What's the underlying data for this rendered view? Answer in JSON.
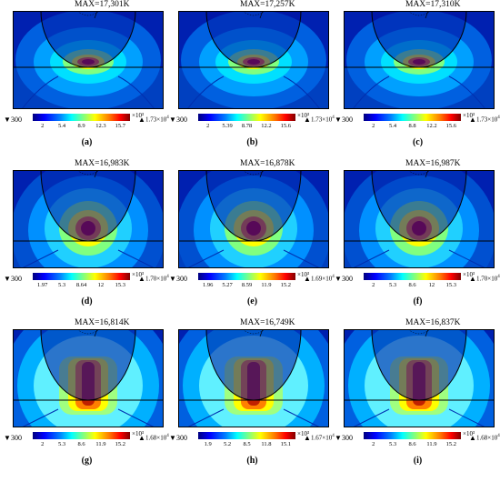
{
  "panels": [
    {
      "max": "MAX=17,301K",
      "min": "300",
      "maxv": "1.73×10",
      "ticks": [
        "2",
        "5.4",
        "8.9",
        "12.3",
        "15.7"
      ],
      "unit": "×10³",
      "caption": "(a)",
      "style": 1
    },
    {
      "max": "MAX=17,257K",
      "min": "300",
      "maxv": "1.73×10",
      "ticks": [
        "2",
        "5.39",
        "8.78",
        "12.2",
        "15.6"
      ],
      "unit": "×10³",
      "caption": "(b)",
      "style": 1
    },
    {
      "max": "MAX=17,310K",
      "min": "300",
      "maxv": "1.73×10",
      "ticks": [
        "2",
        "5.4",
        "8.8",
        "12.2",
        "15.6"
      ],
      "unit": "×10³",
      "caption": "(c)",
      "style": 1
    },
    {
      "max": "MAX=16,983K",
      "min": "300",
      "maxv": "1.70×10",
      "ticks": [
        "1.97",
        "5.3",
        "8.64",
        "12",
        "15.3"
      ],
      "unit": "×10³",
      "caption": "(d)",
      "style": 2
    },
    {
      "max": "MAX=16,878K",
      "min": "300",
      "maxv": "1.69×10",
      "ticks": [
        "1.96",
        "5.27",
        "8.59",
        "11.9",
        "15.2"
      ],
      "unit": "×10³",
      "caption": "(e)",
      "style": 2
    },
    {
      "max": "MAX=16,987K",
      "min": "300",
      "maxv": "1.70×10",
      "ticks": [
        "2",
        "5.3",
        "8.6",
        "12",
        "15.3"
      ],
      "unit": "×10³",
      "caption": "(f)",
      "style": 2
    },
    {
      "max": "MAX=16,814K",
      "min": "300",
      "maxv": "1.68×10",
      "ticks": [
        "2",
        "5.3",
        "8.6",
        "11.9",
        "15.2"
      ],
      "unit": "×10³",
      "caption": "(g)",
      "style": 3
    },
    {
      "max": "MAX=16,749K",
      "min": "300",
      "maxv": "1.67×10",
      "ticks": [
        "1.9",
        "5.2",
        "8.5",
        "11.8",
        "15.1"
      ],
      "unit": "×10³",
      "caption": "(h)",
      "style": 3
    },
    {
      "max": "MAX=16,837K",
      "min": "300",
      "maxv": "1.68×10",
      "ticks": [
        "2",
        "5.3",
        "8.6",
        "11.9",
        "15.2"
      ],
      "unit": "×10³",
      "caption": "(i)",
      "style": 3
    }
  ],
  "exponent": "4",
  "colors": {
    "deep": "#00007f",
    "blue": "#0000ff",
    "sky": "#0080ff",
    "cyan": "#00ffff",
    "yellow": "#ffff00",
    "orange": "#ff8000",
    "red": "#ff0000",
    "dark_red": "#800000"
  }
}
